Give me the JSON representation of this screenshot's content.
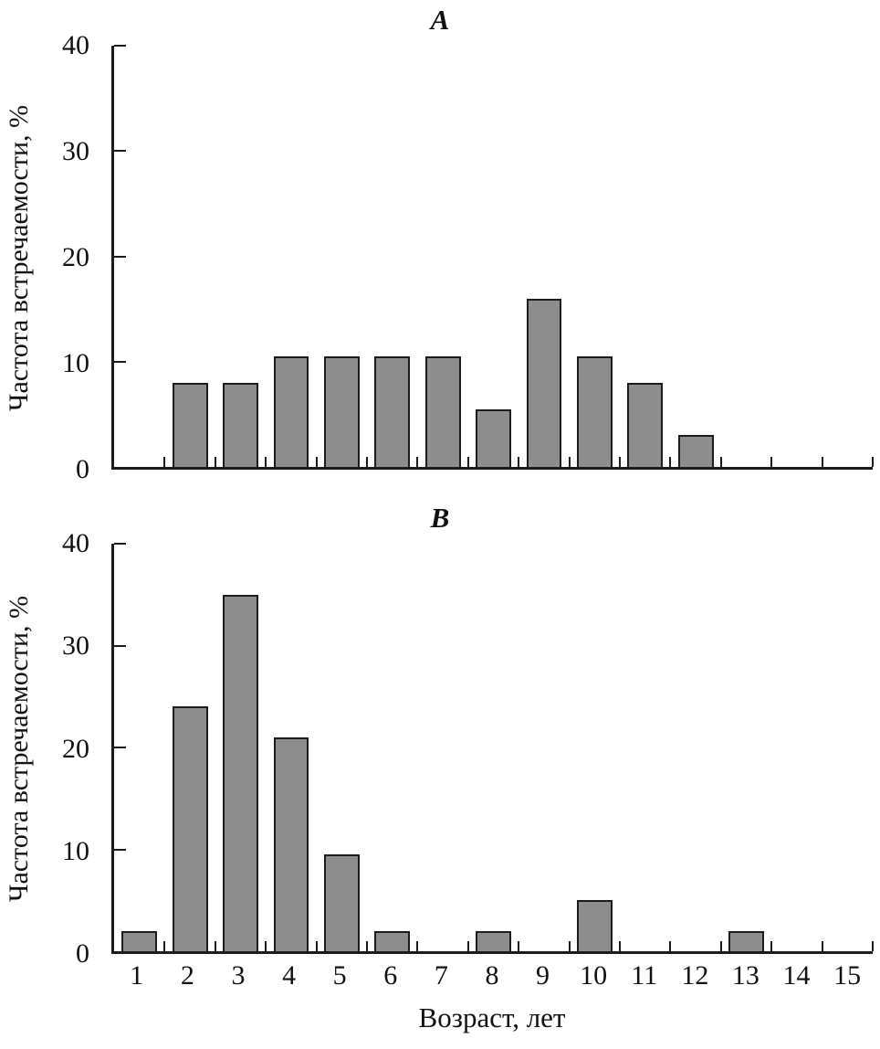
{
  "figure": {
    "bar_fill": "#8d8d8d",
    "bar_border": "#1c1c1c",
    "axis_color": "#1c1c1c"
  },
  "chart_data": [
    {
      "type": "bar",
      "title": "A",
      "ylabel": "Частота встречаемости, %",
      "xlabel": "",
      "categories": [
        1,
        2,
        3,
        4,
        5,
        6,
        7,
        8,
        9,
        10,
        11,
        12,
        13,
        14,
        15
      ],
      "values": [
        0,
        8,
        8,
        10.5,
        10.5,
        10.5,
        10.5,
        5.5,
        16,
        10.5,
        8,
        3,
        0,
        0,
        0
      ],
      "ylim": [
        0,
        40
      ],
      "yticks": [
        0,
        10,
        20,
        30,
        40
      ],
      "grid": false,
      "legend": "none"
    },
    {
      "type": "bar",
      "title": "B",
      "ylabel": "Частота встречаемости, %",
      "xlabel": "Возраст, лет",
      "categories": [
        1,
        2,
        3,
        4,
        5,
        6,
        7,
        8,
        9,
        10,
        11,
        12,
        13,
        14,
        15
      ],
      "values": [
        2,
        24,
        35,
        21,
        9.5,
        2,
        0,
        2,
        0,
        5,
        0,
        0,
        2,
        0,
        0
      ],
      "ylim": [
        0,
        40
      ],
      "yticks": [
        0,
        10,
        20,
        30,
        40
      ],
      "grid": false,
      "legend": "none"
    }
  ]
}
